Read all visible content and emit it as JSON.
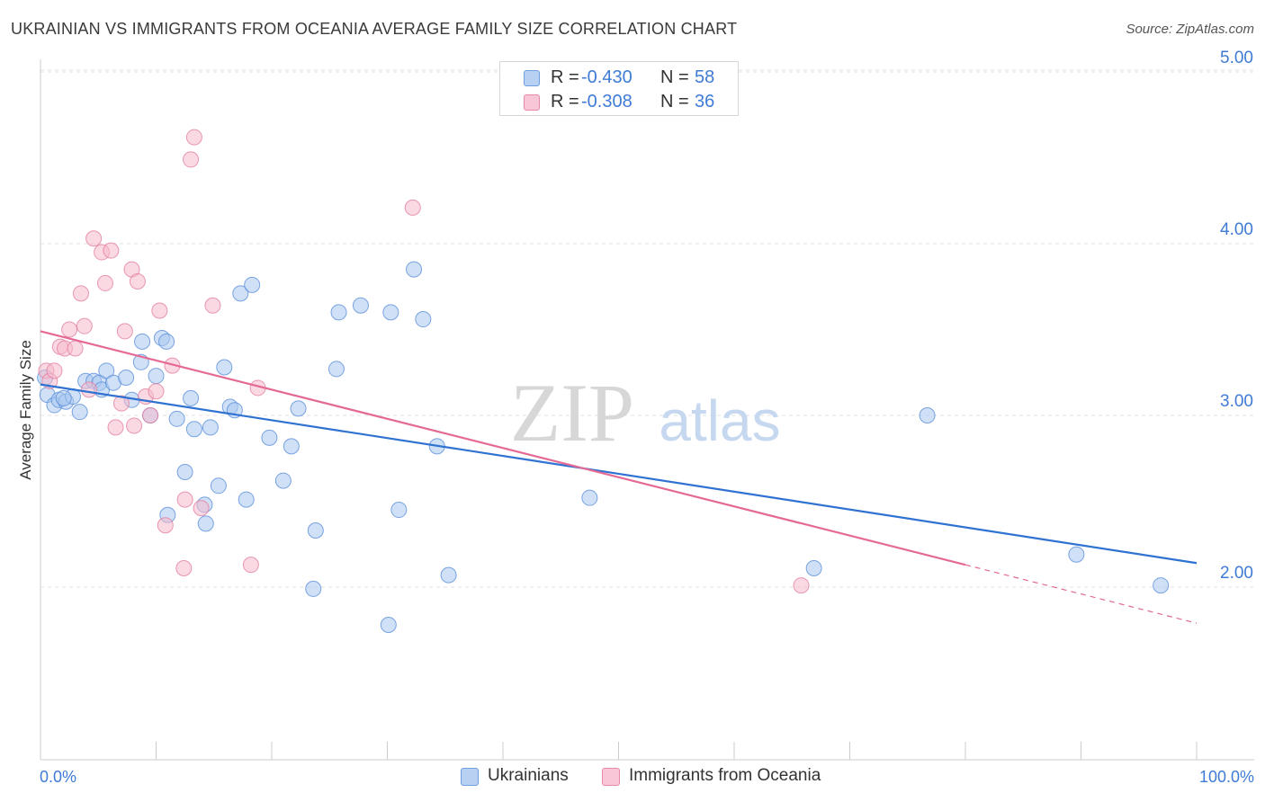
{
  "header": {
    "title": "UKRAINIAN VS IMMIGRANTS FROM OCEANIA AVERAGE FAMILY SIZE CORRELATION CHART",
    "source": "Source: ZipAtlas.com"
  },
  "legend_top": {
    "rows": [
      {
        "r_label": "R =",
        "r_value": "-0.430",
        "n_label": "N =",
        "n_value": "58"
      },
      {
        "r_label": "R =",
        "r_value": "-0.308",
        "n_label": "N =",
        "n_value": "36"
      }
    ]
  },
  "watermark": {
    "zip": "ZIP",
    "atlas": "atlas"
  },
  "colors": {
    "blue_fill": "#a9c8f0",
    "blue_stroke": "#5b8fd9",
    "blue_line": "#2f72d1",
    "pink_fill": "#f6b9cc",
    "pink_stroke": "#e47fa0",
    "pink_line": "#e46a95",
    "axis_value": "#3f7bd6",
    "grid": "#e2e2e2"
  },
  "chart_data": {
    "type": "scatter",
    "title": "UKRAINIAN VS IMMIGRANTS FROM OCEANIA AVERAGE FAMILY SIZE CORRELATION CHART",
    "xlabel": "",
    "ylabel": "Average Family Size",
    "xlim": [
      0,
      100
    ],
    "ylim": [
      1.0,
      5.1
    ],
    "x_tick_labels": [
      "0.0%",
      "100.0%"
    ],
    "y_ticks": [
      2.0,
      3.0,
      4.0,
      5.0
    ],
    "y_tick_labels": [
      "2.00",
      "3.00",
      "4.00",
      "5.00"
    ],
    "grid": true,
    "legend_position": "bottom-center",
    "series": [
      {
        "name": "Ukrainians",
        "color": "#a9c8f0",
        "r": -0.43,
        "n": 58,
        "trend": {
          "x": [
            0,
            100
          ],
          "y": [
            3.18,
            2.14
          ]
        },
        "points": [
          {
            "x": 0.4,
            "y": 3.22
          },
          {
            "x": 0.6,
            "y": 3.12
          },
          {
            "x": 1.2,
            "y": 3.06
          },
          {
            "x": 1.6,
            "y": 3.09
          },
          {
            "x": 2.2,
            "y": 3.08
          },
          {
            "x": 2.8,
            "y": 3.11
          },
          {
            "x": 3.4,
            "y": 3.02
          },
          {
            "x": 3.9,
            "y": 3.2
          },
          {
            "x": 4.6,
            "y": 3.2
          },
          {
            "x": 5.1,
            "y": 3.19
          },
          {
            "x": 5.3,
            "y": 3.15
          },
          {
            "x": 5.7,
            "y": 3.26
          },
          {
            "x": 6.3,
            "y": 3.19
          },
          {
            "x": 7.4,
            "y": 3.22
          },
          {
            "x": 7.9,
            "y": 3.09
          },
          {
            "x": 8.7,
            "y": 3.31
          },
          {
            "x": 8.8,
            "y": 3.43
          },
          {
            "x": 9.5,
            "y": 3.0
          },
          {
            "x": 10.0,
            "y": 3.23
          },
          {
            "x": 10.5,
            "y": 3.45
          },
          {
            "x": 10.9,
            "y": 3.43
          },
          {
            "x": 11.8,
            "y": 2.98
          },
          {
            "x": 12.5,
            "y": 2.67
          },
          {
            "x": 13.0,
            "y": 3.1
          },
          {
            "x": 13.3,
            "y": 2.92
          },
          {
            "x": 14.2,
            "y": 2.48
          },
          {
            "x": 14.3,
            "y": 2.37
          },
          {
            "x": 14.7,
            "y": 2.93
          },
          {
            "x": 15.4,
            "y": 2.59
          },
          {
            "x": 15.9,
            "y": 3.28
          },
          {
            "x": 16.4,
            "y": 3.05
          },
          {
            "x": 16.8,
            "y": 3.03
          },
          {
            "x": 17.3,
            "y": 3.71
          },
          {
            "x": 17.8,
            "y": 2.51
          },
          {
            "x": 18.3,
            "y": 3.76
          },
          {
            "x": 19.8,
            "y": 2.87
          },
          {
            "x": 21.0,
            "y": 2.62
          },
          {
            "x": 21.7,
            "y": 2.82
          },
          {
            "x": 22.3,
            "y": 3.04
          },
          {
            "x": 23.6,
            "y": 1.99
          },
          {
            "x": 23.8,
            "y": 2.33
          },
          {
            "x": 25.6,
            "y": 3.27
          },
          {
            "x": 25.8,
            "y": 3.6
          },
          {
            "x": 27.7,
            "y": 3.64
          },
          {
            "x": 30.1,
            "y": 1.78
          },
          {
            "x": 30.3,
            "y": 3.6
          },
          {
            "x": 31.0,
            "y": 2.45
          },
          {
            "x": 32.3,
            "y": 3.85
          },
          {
            "x": 33.1,
            "y": 3.56
          },
          {
            "x": 34.3,
            "y": 2.82
          },
          {
            "x": 35.3,
            "y": 2.07
          },
          {
            "x": 47.5,
            "y": 2.52
          },
          {
            "x": 11.0,
            "y": 2.42
          },
          {
            "x": 66.9,
            "y": 2.11
          },
          {
            "x": 76.7,
            "y": 3.0
          },
          {
            "x": 89.6,
            "y": 2.19
          },
          {
            "x": 96.9,
            "y": 2.01
          },
          {
            "x": 2.0,
            "y": 3.1
          }
        ]
      },
      {
        "name": "Immigrants from Oceania",
        "color": "#f6b9cc",
        "r": -0.308,
        "n": 36,
        "trend": {
          "x": [
            0,
            80
          ],
          "y": [
            3.49,
            2.13
          ]
        },
        "trend_dashed": {
          "x": [
            80,
            100
          ],
          "y": [
            2.13,
            1.79
          ]
        },
        "points": [
          {
            "x": 0.5,
            "y": 3.26
          },
          {
            "x": 0.8,
            "y": 3.2
          },
          {
            "x": 1.2,
            "y": 3.26
          },
          {
            "x": 1.7,
            "y": 3.4
          },
          {
            "x": 2.1,
            "y": 3.39
          },
          {
            "x": 2.5,
            "y": 3.5
          },
          {
            "x": 3.0,
            "y": 3.39
          },
          {
            "x": 3.5,
            "y": 3.71
          },
          {
            "x": 3.8,
            "y": 3.52
          },
          {
            "x": 4.2,
            "y": 3.15
          },
          {
            "x": 4.6,
            "y": 4.03
          },
          {
            "x": 5.3,
            "y": 3.95
          },
          {
            "x": 5.6,
            "y": 3.77
          },
          {
            "x": 6.1,
            "y": 3.96
          },
          {
            "x": 6.5,
            "y": 2.93
          },
          {
            "x": 7.0,
            "y": 3.07
          },
          {
            "x": 7.3,
            "y": 3.49
          },
          {
            "x": 7.9,
            "y": 3.85
          },
          {
            "x": 8.1,
            "y": 2.94
          },
          {
            "x": 8.4,
            "y": 3.78
          },
          {
            "x": 9.1,
            "y": 3.11
          },
          {
            "x": 9.5,
            "y": 3.0
          },
          {
            "x": 10.0,
            "y": 3.14
          },
          {
            "x": 10.3,
            "y": 3.61
          },
          {
            "x": 10.8,
            "y": 2.36
          },
          {
            "x": 11.4,
            "y": 3.29
          },
          {
            "x": 12.4,
            "y": 2.11
          },
          {
            "x": 12.5,
            "y": 2.51
          },
          {
            "x": 13.0,
            "y": 4.49
          },
          {
            "x": 13.3,
            "y": 4.62
          },
          {
            "x": 13.9,
            "y": 2.46
          },
          {
            "x": 14.9,
            "y": 3.64
          },
          {
            "x": 18.2,
            "y": 2.13
          },
          {
            "x": 18.8,
            "y": 3.16
          },
          {
            "x": 32.2,
            "y": 4.21
          },
          {
            "x": 65.8,
            "y": 2.01
          }
        ]
      }
    ]
  }
}
